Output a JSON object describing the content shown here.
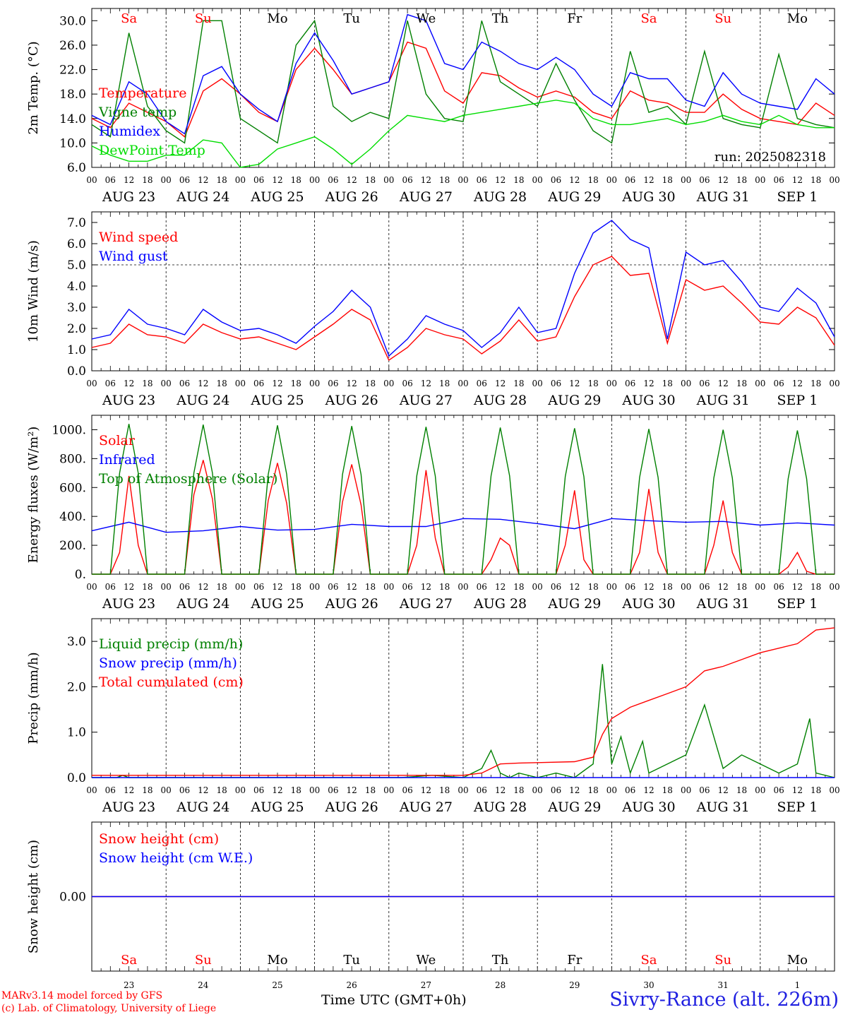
{
  "footer": {
    "credit_line1": "MARv3.14 model forced by GFS",
    "credit_line2": "(c) Lab. of Climatology, University of Liege",
    "time_label": "Time UTC (GMT+0h)",
    "station": "Sivry-Rance (alt. 226m)"
  },
  "colors": {
    "red": "#ff0000",
    "green": "#008000",
    "blue": "#0000ff",
    "light_green": "#00dd00",
    "black": "#000000"
  },
  "day_names": [
    "Sa",
    "Su",
    "Mo",
    "Tu",
    "We",
    "Th",
    "Fr",
    "Sa",
    "Su",
    "Mo"
  ],
  "day_name_colors": [
    "red",
    "red",
    "black",
    "black",
    "black",
    "black",
    "black",
    "red",
    "red",
    "black"
  ],
  "date_labels": [
    "AUG 23",
    "AUG 24",
    "AUG 25",
    "AUG 26",
    "AUG 27",
    "AUG 28",
    "AUG 29",
    "AUG 30",
    "AUG 31",
    "SEP  1"
  ],
  "day_numbers": [
    "23",
    "24",
    "25",
    "26",
    "27",
    "28",
    "29",
    "30",
    "31",
    "1"
  ],
  "hour_labels": [
    "00",
    "06",
    "12",
    "18"
  ],
  "chart_data": [
    {
      "type": "line",
      "ylabel": "2m Temp. (°C)",
      "ylim": [
        6,
        32
      ],
      "yticks": [
        "6.0",
        "10.0",
        "14.0",
        "18.0",
        "22.0",
        "26.0",
        "30.0"
      ],
      "annotation": "run: 2025082318",
      "x_unit": "hours since 2025-08-23 00 UTC",
      "series": [
        {
          "name": "Temperature",
          "color": "red",
          "x": [
            0,
            6,
            12,
            18,
            24,
            30,
            36,
            42,
            48,
            54,
            60,
            66,
            72,
            78,
            84,
            90,
            96,
            102,
            108,
            114,
            120,
            126,
            132,
            138,
            144,
            150,
            156,
            162,
            168,
            174,
            180,
            186,
            192,
            198,
            204,
            210,
            216,
            222,
            228,
            234,
            240
          ],
          "values": [
            14,
            12.5,
            16.5,
            15,
            13.5,
            11,
            18.5,
            20.5,
            18,
            15,
            13.5,
            22,
            25.5,
            22,
            18,
            19,
            20,
            26.5,
            25.5,
            18.5,
            16.5,
            21.5,
            21,
            19,
            17.5,
            18.5,
            17.5,
            15,
            14,
            18.5,
            17,
            16.5,
            15,
            15,
            18,
            15.5,
            14,
            13.5,
            13,
            16.5,
            14.5
          ]
        },
        {
          "name": "Vigne temp",
          "color": "green",
          "x": [
            0,
            6,
            12,
            18,
            24,
            30,
            36,
            42,
            48,
            54,
            60,
            66,
            72,
            78,
            84,
            90,
            96,
            102,
            108,
            114,
            120,
            126,
            132,
            138,
            144,
            150,
            156,
            162,
            168,
            174,
            180,
            186,
            192,
            198,
            204,
            210,
            216,
            222,
            228,
            234,
            240
          ],
          "values": [
            13,
            11,
            28,
            16,
            12,
            10,
            30,
            30,
            14,
            12,
            10,
            26,
            30,
            16,
            13.5,
            15,
            14,
            30,
            18,
            14,
            13.5,
            30,
            20,
            18,
            16,
            23,
            17,
            12,
            10,
            25,
            15,
            16,
            13,
            25,
            14,
            13,
            12.5,
            24.5,
            14,
            13,
            12.5
          ]
        },
        {
          "name": "Humidex",
          "color": "blue",
          "x": [
            0,
            6,
            12,
            18,
            24,
            30,
            36,
            42,
            48,
            54,
            60,
            66,
            72,
            78,
            84,
            90,
            96,
            102,
            108,
            114,
            120,
            126,
            132,
            138,
            144,
            150,
            156,
            162,
            168,
            174,
            180,
            186,
            192,
            198,
            204,
            210,
            216,
            222,
            228,
            234,
            240
          ],
          "values": [
            14.5,
            13,
            20,
            18,
            13.5,
            11.5,
            21,
            22.5,
            18,
            15.5,
            13.5,
            23,
            28,
            23.5,
            18,
            19,
            20,
            31,
            30,
            23,
            22,
            26.5,
            25,
            23,
            22,
            24,
            22,
            18,
            16,
            21.5,
            20.5,
            20.5,
            17,
            16,
            21.5,
            18,
            16.5,
            16,
            15.5,
            20.5,
            18
          ]
        },
        {
          "name": "DewPoint Temp",
          "color": "light_green",
          "x": [
            0,
            6,
            12,
            18,
            24,
            30,
            36,
            42,
            48,
            54,
            60,
            66,
            72,
            78,
            84,
            90,
            96,
            102,
            108,
            114,
            120,
            126,
            132,
            138,
            144,
            150,
            156,
            162,
            168,
            174,
            180,
            186,
            192,
            198,
            204,
            210,
            216,
            222,
            228,
            234,
            240
          ],
          "values": [
            9.5,
            8,
            7,
            7,
            8,
            8,
            10.5,
            10,
            6,
            6.5,
            9,
            10,
            11,
            9,
            6.5,
            9,
            12,
            14.5,
            14,
            13.5,
            14.5,
            15,
            15.5,
            16,
            16.5,
            17,
            16.5,
            14,
            13,
            13,
            13.5,
            14,
            13,
            13.5,
            14.5,
            13.5,
            13,
            14.5,
            13,
            12.5,
            12.5
          ]
        }
      ]
    },
    {
      "type": "line",
      "ylabel": "10m Wind (m/s)",
      "ylim": [
        0,
        7.5
      ],
      "yticks": [
        "0.0",
        "1.0",
        "2.0",
        "3.0",
        "4.0",
        "5.0",
        "6.0",
        "7.0"
      ],
      "reference_line": 5.0,
      "x_unit": "hours since 2025-08-23 00 UTC",
      "series": [
        {
          "name": "Wind speed",
          "color": "red",
          "x": [
            0,
            6,
            12,
            18,
            24,
            30,
            36,
            42,
            48,
            54,
            60,
            66,
            72,
            78,
            84,
            90,
            96,
            102,
            108,
            114,
            120,
            126,
            132,
            138,
            144,
            150,
            156,
            162,
            168,
            174,
            180,
            186,
            192,
            198,
            204,
            210,
            216,
            222,
            228,
            234,
            240
          ],
          "values": [
            1.1,
            1.3,
            2.2,
            1.7,
            1.6,
            1.3,
            2.2,
            1.8,
            1.5,
            1.6,
            1.3,
            1.0,
            1.6,
            2.2,
            2.9,
            2.4,
            0.5,
            1.1,
            2.0,
            1.7,
            1.5,
            0.8,
            1.4,
            2.4,
            1.4,
            1.6,
            3.5,
            5.0,
            5.4,
            4.5,
            4.6,
            1.3,
            4.3,
            3.8,
            4.0,
            3.2,
            2.3,
            2.2,
            3.0,
            2.5,
            1.2
          ]
        },
        {
          "name": "Wind gust",
          "color": "blue",
          "x": [
            0,
            6,
            12,
            18,
            24,
            30,
            36,
            42,
            48,
            54,
            60,
            66,
            72,
            78,
            84,
            90,
            96,
            102,
            108,
            114,
            120,
            126,
            132,
            138,
            144,
            150,
            156,
            162,
            168,
            174,
            180,
            186,
            192,
            198,
            204,
            210,
            216,
            222,
            228,
            234,
            240
          ],
          "values": [
            1.5,
            1.7,
            2.9,
            2.2,
            2.0,
            1.7,
            2.9,
            2.3,
            1.9,
            2.0,
            1.7,
            1.3,
            2.1,
            2.8,
            3.8,
            3.0,
            0.7,
            1.5,
            2.6,
            2.2,
            1.9,
            1.1,
            1.8,
            3.0,
            1.8,
            2.0,
            4.6,
            6.5,
            7.1,
            6.2,
            5.8,
            1.5,
            5.6,
            5.0,
            5.2,
            4.2,
            3.0,
            2.8,
            3.9,
            3.2,
            1.6
          ]
        }
      ]
    },
    {
      "type": "line",
      "ylabel": "Energy fluxes (W/m²)",
      "ylim": [
        0,
        1100
      ],
      "yticks": [
        "0.",
        "200.",
        "400.",
        "600.",
        "800.",
        "1000."
      ],
      "x_unit": "hours since 2025-08-23 00 UTC",
      "series": [
        {
          "name": "Solar",
          "color": "red",
          "x": [
            0,
            6,
            9,
            12,
            15,
            18,
            24,
            30,
            33,
            36,
            39,
            42,
            48,
            54,
            57,
            60,
            63,
            66,
            72,
            78,
            81,
            84,
            87,
            90,
            96,
            102,
            105,
            108,
            111,
            114,
            120,
            126,
            129,
            132,
            135,
            138,
            144,
            150,
            153,
            156,
            159,
            162,
            168,
            174,
            177,
            180,
            183,
            186,
            192,
            198,
            201,
            204,
            207,
            210,
            216,
            222,
            225,
            228,
            231,
            234,
            240
          ],
          "values": [
            0,
            0,
            150,
            680,
            200,
            0,
            0,
            0,
            550,
            790,
            520,
            0,
            0,
            0,
            510,
            770,
            490,
            0,
            0,
            0,
            500,
            760,
            480,
            0,
            0,
            0,
            200,
            720,
            250,
            0,
            0,
            0,
            100,
            250,
            200,
            0,
            0,
            0,
            200,
            580,
            100,
            0,
            0,
            0,
            150,
            590,
            150,
            0,
            0,
            0,
            200,
            510,
            150,
            0,
            0,
            0,
            50,
            150,
            20,
            0,
            0
          ]
        },
        {
          "name": "Infrared",
          "color": "blue",
          "x": [
            0,
            12,
            24,
            36,
            48,
            60,
            72,
            84,
            96,
            108,
            120,
            132,
            144,
            156,
            168,
            180,
            192,
            204,
            216,
            228,
            240
          ],
          "values": [
            300,
            360,
            290,
            300,
            330,
            305,
            310,
            345,
            330,
            330,
            385,
            380,
            350,
            315,
            385,
            370,
            360,
            365,
            340,
            355,
            340
          ]
        },
        {
          "name": "Top of Atmosphere (Solar)",
          "color": "green",
          "x": [
            0,
            6,
            9,
            12,
            15,
            18,
            24,
            30,
            33,
            36,
            39,
            42,
            48,
            54,
            57,
            60,
            63,
            66,
            72,
            78,
            81,
            84,
            87,
            90,
            96,
            102,
            105,
            108,
            111,
            114,
            120,
            126,
            129,
            132,
            135,
            138,
            144,
            150,
            153,
            156,
            159,
            162,
            168,
            174,
            177,
            180,
            183,
            186,
            192,
            198,
            201,
            204,
            207,
            210,
            216,
            222,
            225,
            228,
            231,
            234,
            240
          ],
          "values": [
            0,
            0,
            700,
            1040,
            700,
            0,
            0,
            0,
            700,
            1035,
            700,
            0,
            0,
            0,
            690,
            1030,
            690,
            0,
            0,
            0,
            690,
            1025,
            690,
            0,
            0,
            0,
            680,
            1020,
            680,
            0,
            0,
            0,
            680,
            1015,
            680,
            0,
            0,
            0,
            675,
            1010,
            675,
            0,
            0,
            0,
            670,
            1005,
            670,
            0,
            0,
            0,
            665,
            1000,
            665,
            0,
            0,
            0,
            660,
            995,
            660,
            0,
            0
          ]
        }
      ]
    },
    {
      "type": "line",
      "ylabel": "Precip (mm/h)",
      "ylim": [
        0,
        3.5
      ],
      "yticks": [
        "0.0",
        "1.0",
        "2.0",
        "3.0"
      ],
      "x_unit": "hours since 2025-08-23 00 UTC",
      "series": [
        {
          "name": "Liquid precip (mm/h)",
          "color": "green",
          "x": [
            0,
            8,
            10,
            12,
            100,
            110,
            120,
            126,
            129,
            132,
            135,
            138,
            144,
            150,
            156,
            162,
            165,
            168,
            171,
            174,
            178,
            180,
            186,
            192,
            198,
            204,
            210,
            216,
            222,
            228,
            232,
            234,
            240
          ],
          "values": [
            0,
            0,
            0.05,
            0,
            0,
            0.05,
            0,
            0.2,
            0.6,
            0.1,
            0,
            0.1,
            0,
            0.1,
            0,
            0.3,
            2.5,
            0.3,
            0.9,
            0.1,
            0.8,
            0.1,
            0.3,
            0.5,
            1.6,
            0.2,
            0.5,
            0.3,
            0.1,
            0.3,
            1.3,
            0.1,
            0
          ]
        },
        {
          "name": "Snow precip (mm/h)",
          "color": "blue",
          "x": [
            0,
            240
          ],
          "values": [
            0,
            0
          ]
        },
        {
          "name": "Total cumulated (cm)",
          "color": "red",
          "x": [
            0,
            120,
            126,
            132,
            138,
            144,
            156,
            162,
            165,
            168,
            174,
            180,
            186,
            192,
            198,
            204,
            210,
            216,
            222,
            228,
            234,
            240
          ],
          "values": [
            0.05,
            0.05,
            0.1,
            0.3,
            0.32,
            0.33,
            0.35,
            0.45,
            0.95,
            1.3,
            1.55,
            1.7,
            1.85,
            2.0,
            2.35,
            2.45,
            2.6,
            2.75,
            2.85,
            2.95,
            3.25,
            3.3
          ]
        }
      ]
    },
    {
      "type": "line",
      "ylabel": "Snow height (cm)",
      "ylim": [
        -1,
        1
      ],
      "yticks": [
        "0.00"
      ],
      "x_unit": "hours since 2025-08-23 00 UTC",
      "series": [
        {
          "name": "Snow height (cm)",
          "color": "red",
          "x": [
            0,
            240
          ],
          "values": [
            0,
            0
          ]
        },
        {
          "name": "Snow height (cm W.E.)",
          "color": "blue",
          "x": [
            0,
            240
          ],
          "values": [
            0,
            0
          ]
        }
      ]
    }
  ]
}
